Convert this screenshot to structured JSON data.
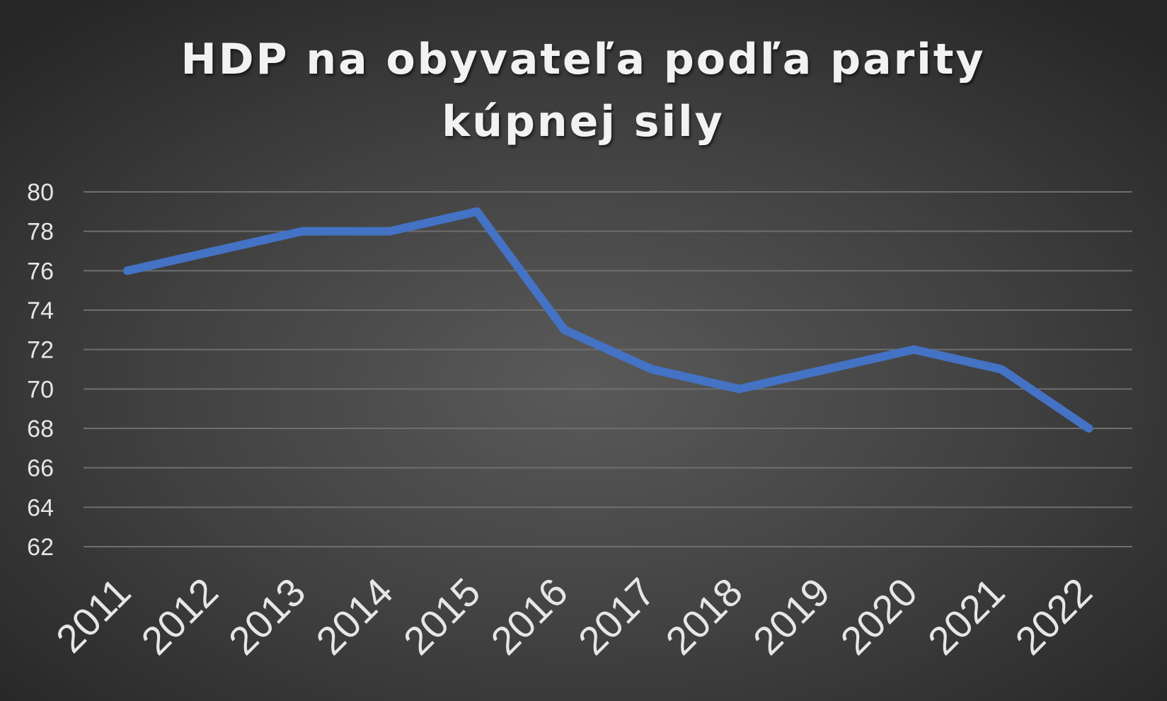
{
  "chart_data": {
    "type": "line",
    "title": "HDP na obyvateľa podľa parity kúpnej sily",
    "title_lines": [
      "HDP na obyvateľa podľa parity",
      "kúpnej sily"
    ],
    "categories": [
      "2011",
      "2012",
      "2013",
      "2014",
      "2015",
      "2016",
      "2017",
      "2018",
      "2019",
      "2020",
      "2021",
      "2022"
    ],
    "series": [
      {
        "values": [
          76,
          77,
          78,
          78,
          79,
          73,
          71,
          70,
          71,
          72,
          71,
          68
        ],
        "color": "#4472c4"
      }
    ],
    "yticks": [
      "80",
      "78",
      "76",
      "74",
      "72",
      "70",
      "68",
      "66",
      "64",
      "62"
    ],
    "ylim": [
      62,
      80
    ],
    "grid": true,
    "legend": "none",
    "xlabel": "",
    "ylabel": ""
  }
}
